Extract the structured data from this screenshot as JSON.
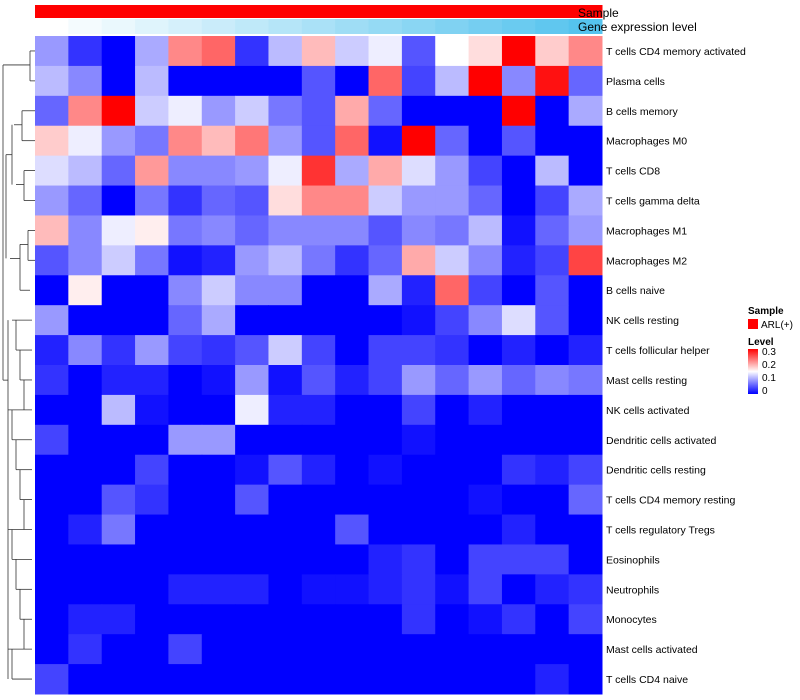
{
  "chart_data": {
    "type": "heatmap",
    "title": "",
    "annotations": [
      {
        "name": "Sample",
        "values": "ARL(+)",
        "color": "#ff0000"
      },
      {
        "name": "Gene expression level",
        "gradient_start": "#ffffff",
        "gradient_end": "#55c3ee"
      }
    ],
    "rows": [
      "T cells CD4 memory activated",
      "Plasma cells",
      "B cells memory",
      "Macrophages M0",
      "T cells CD8",
      "T cells gamma delta",
      "Macrophages M1",
      "Macrophages M2",
      "B cells naive",
      "NK cells resting",
      "T cells follicular helper",
      "Mast cells resting",
      "NK cells activated",
      "Dendritic cells activated",
      "Dendritic cells resting",
      "T cells CD4 memory resting",
      "T cells regulatory  Tregs",
      "Eosinophils",
      "Neutrophils",
      "Monocytes",
      "Mast cells activated",
      "T cells CD4 naive"
    ],
    "n_columns": 17,
    "values": [
      [
        0.09,
        0.03,
        0.0,
        0.1,
        0.22,
        0.24,
        0.03,
        0.11,
        0.19,
        0.12,
        0.14,
        0.05,
        0.15,
        0.17,
        0.3,
        0.18,
        0.22
      ],
      [
        0.11,
        0.08,
        0.0,
        0.11,
        0.0,
        0.0,
        0.0,
        0.0,
        0.05,
        0.0,
        0.24,
        0.04,
        0.11,
        0.3,
        0.08,
        0.29,
        0.06
      ],
      [
        0.06,
        0.22,
        0.3,
        0.12,
        0.14,
        0.09,
        0.12,
        0.07,
        0.05,
        0.2,
        0.06,
        0.0,
        0.0,
        0.0,
        0.3,
        0.0,
        0.1
      ],
      [
        0.18,
        0.14,
        0.09,
        0.07,
        0.22,
        0.19,
        0.23,
        0.09,
        0.05,
        0.24,
        0.01,
        0.3,
        0.06,
        0.0,
        0.05,
        0.0,
        0.0
      ],
      [
        0.13,
        0.11,
        0.06,
        0.21,
        0.08,
        0.08,
        0.09,
        0.14,
        0.27,
        0.1,
        0.2,
        0.13,
        0.09,
        0.04,
        0.0,
        0.11,
        0.0
      ],
      [
        0.09,
        0.06,
        0.0,
        0.07,
        0.03,
        0.06,
        0.05,
        0.17,
        0.22,
        0.22,
        0.12,
        0.09,
        0.09,
        0.06,
        0.0,
        0.04,
        0.1
      ],
      [
        0.19,
        0.08,
        0.14,
        0.16,
        0.07,
        0.08,
        0.06,
        0.08,
        0.08,
        0.08,
        0.05,
        0.08,
        0.07,
        0.11,
        0.01,
        0.06,
        0.09
      ],
      [
        0.05,
        0.08,
        0.12,
        0.07,
        0.01,
        0.02,
        0.09,
        0.11,
        0.07,
        0.03,
        0.06,
        0.2,
        0.12,
        0.08,
        0.02,
        0.04,
        0.26
      ],
      [
        0.0,
        0.16,
        0.0,
        0.0,
        0.08,
        0.12,
        0.08,
        0.08,
        0.0,
        0.0,
        0.1,
        0.02,
        0.24,
        0.04,
        0.0,
        0.05,
        0.0
      ],
      [
        0.09,
        0.0,
        0.0,
        0.0,
        0.06,
        0.1,
        0.0,
        0.0,
        0.0,
        0.0,
        0.0,
        0.01,
        0.04,
        0.08,
        0.13,
        0.05,
        0.0
      ],
      [
        0.02,
        0.08,
        0.03,
        0.09,
        0.04,
        0.03,
        0.05,
        0.12,
        0.04,
        0.0,
        0.04,
        0.04,
        0.03,
        0.0,
        0.02,
        0.0,
        0.02
      ],
      [
        0.03,
        0.0,
        0.02,
        0.02,
        0.0,
        0.01,
        0.09,
        0.01,
        0.05,
        0.02,
        0.04,
        0.09,
        0.06,
        0.09,
        0.06,
        0.08,
        0.07
      ],
      [
        0.0,
        0.0,
        0.11,
        0.01,
        0.0,
        0.0,
        0.14,
        0.02,
        0.02,
        0.0,
        0.0,
        0.04,
        0.0,
        0.02,
        0.0,
        0.0,
        0.0
      ],
      [
        0.04,
        0.0,
        0.0,
        0.0,
        0.09,
        0.09,
        0.0,
        0.0,
        0.0,
        0.0,
        0.0,
        0.01,
        0.0,
        0.0,
        0.0,
        0.0,
        0.0
      ],
      [
        0.0,
        0.0,
        0.0,
        0.04,
        0.0,
        0.0,
        0.01,
        0.05,
        0.02,
        0.0,
        0.01,
        0.0,
        0.0,
        0.0,
        0.03,
        0.02,
        0.04
      ],
      [
        0.0,
        0.0,
        0.05,
        0.03,
        0.0,
        0.0,
        0.05,
        0.0,
        0.0,
        0.0,
        0.0,
        0.0,
        0.0,
        0.01,
        0.0,
        0.0,
        0.06
      ],
      [
        0.0,
        0.02,
        0.07,
        0.0,
        0.0,
        0.0,
        0.0,
        0.0,
        0.0,
        0.05,
        0.0,
        0.0,
        0.0,
        0.0,
        0.02,
        0.0,
        0.0
      ],
      [
        0.0,
        0.0,
        0.0,
        0.0,
        0.0,
        0.0,
        0.0,
        0.0,
        0.0,
        0.0,
        0.02,
        0.03,
        0.0,
        0.04,
        0.04,
        0.04,
        0.0
      ],
      [
        0.0,
        0.0,
        0.0,
        0.0,
        0.02,
        0.02,
        0.02,
        0.0,
        0.01,
        0.01,
        0.02,
        0.03,
        0.01,
        0.04,
        0.0,
        0.02,
        0.03
      ],
      [
        0.0,
        0.02,
        0.02,
        0.0,
        0.0,
        0.0,
        0.0,
        0.0,
        0.0,
        0.0,
        0.0,
        0.03,
        0.0,
        0.01,
        0.03,
        0.0,
        0.04
      ],
      [
        0.0,
        0.03,
        0.0,
        0.0,
        0.04,
        0.0,
        0.0,
        0.0,
        0.0,
        0.0,
        0.0,
        0.0,
        0.0,
        0.0,
        0.0,
        0.0,
        0.0
      ],
      [
        0.04,
        0.0,
        0.0,
        0.0,
        0.0,
        0.0,
        0.0,
        0.0,
        0.0,
        0.0,
        0.0,
        0.0,
        0.0,
        0.0,
        0.0,
        0.02,
        0.0
      ]
    ],
    "color_scale": {
      "min": 0,
      "mid": 0.15,
      "max": 0.3,
      "low": "#0000ff",
      "midcolor": "#ffffff",
      "high": "#ff0000"
    },
    "legend": {
      "sample_title": "Sample",
      "sample_entry": "ARL(+)",
      "level_title": "Level",
      "level_ticks": [
        "0.3",
        "0.2",
        "0.1",
        "0"
      ],
      "position": "right"
    }
  }
}
